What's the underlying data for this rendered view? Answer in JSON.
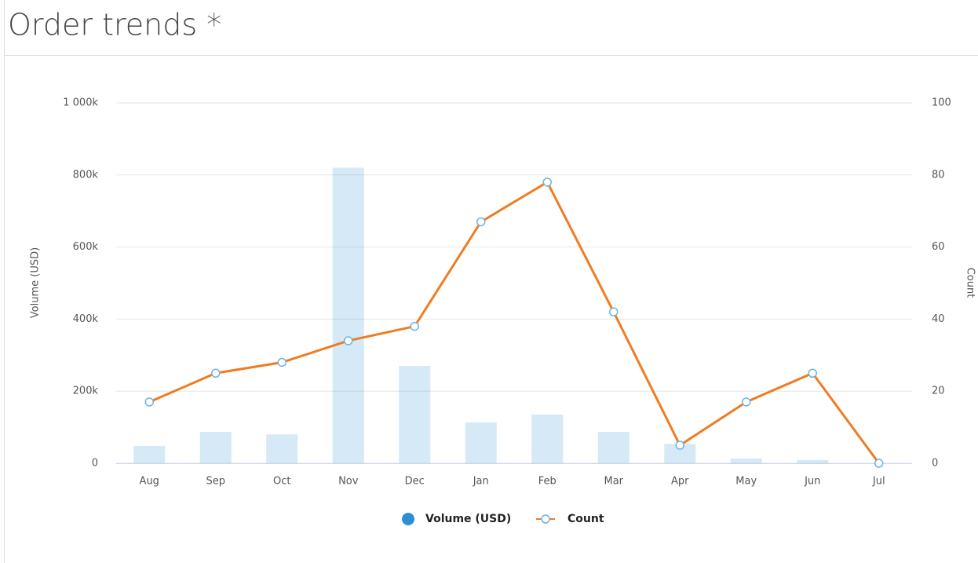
{
  "chart_data": {
    "type": "bar-line",
    "title": "Order trends *",
    "categories": [
      "Aug",
      "Sep",
      "Oct",
      "Nov",
      "Dec",
      "Jan",
      "Feb",
      "Mar",
      "Apr",
      "May",
      "Jun",
      "Jul"
    ],
    "series": [
      {
        "name": "Volume (USD)",
        "type": "bar",
        "color": "#2b8fd3",
        "values": [
          48000,
          87000,
          80000,
          820000,
          270000,
          113000,
          135000,
          87000,
          54000,
          13000,
          9000,
          0
        ]
      },
      {
        "name": "Count",
        "type": "line",
        "axis": "y2",
        "color": "#f07c22",
        "values": [
          17,
          25,
          28,
          34,
          38,
          67,
          78,
          42,
          5,
          17,
          25,
          0
        ]
      }
    ],
    "ylabel": "Volume (USD)",
    "y2label": "Count",
    "ylim": [
      0,
      1000000
    ],
    "yticks": [
      {
        "value": 0,
        "label": "0"
      },
      {
        "value": 200000,
        "label": "200k"
      },
      {
        "value": 400000,
        "label": "400k"
      },
      {
        "value": 600000,
        "label": "600k"
      },
      {
        "value": 800000,
        "label": "800k"
      },
      {
        "value": 1000000,
        "label": "1 000k"
      }
    ],
    "y2lim": [
      0,
      100
    ],
    "y2ticks": [
      0,
      20,
      40,
      60,
      80,
      100
    ],
    "grid": true,
    "legend": "bottom"
  }
}
